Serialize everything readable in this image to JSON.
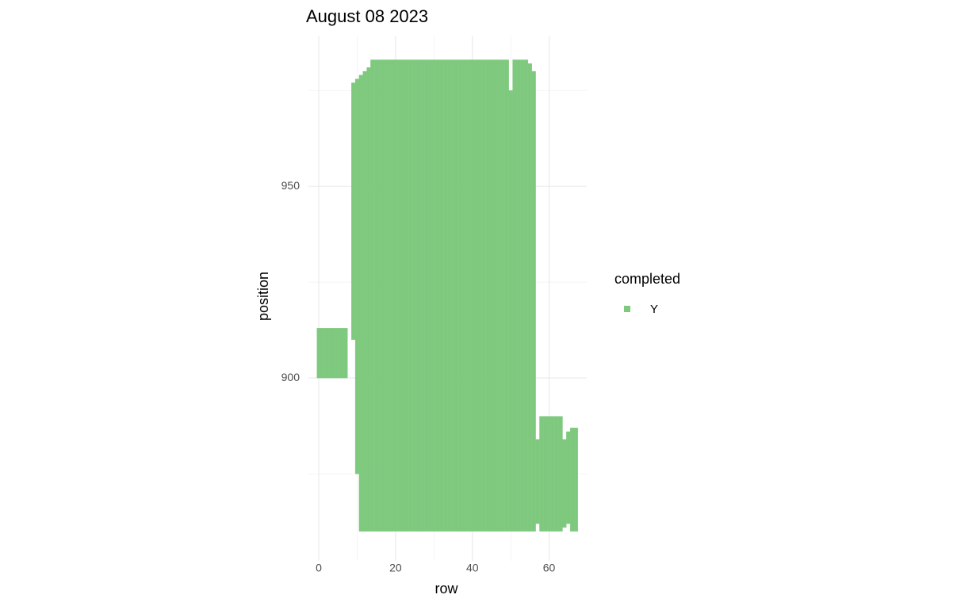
{
  "chart_data": {
    "type": "tile",
    "title": "August 08 2023",
    "x_label": "row",
    "y_label": "position",
    "legend_title": "completed",
    "series": [
      {
        "name": "Y",
        "color": "#7fc97f",
        "x": [
          0,
          1,
          2,
          3,
          4,
          5,
          6,
          7,
          9,
          10,
          11,
          12,
          13,
          14,
          15,
          16,
          17,
          18,
          19,
          20,
          21,
          22,
          23,
          24,
          25,
          26,
          27,
          28,
          29,
          30,
          31,
          32,
          33,
          34,
          35,
          36,
          37,
          38,
          39,
          40,
          41,
          42,
          43,
          44,
          45,
          46,
          47,
          48,
          49,
          50,
          51,
          52,
          53,
          54,
          55,
          56,
          57,
          58,
          59,
          60,
          61,
          62,
          63,
          64,
          65,
          66,
          67
        ],
        "ymin": [
          900,
          900,
          900,
          900,
          900,
          900,
          900,
          900,
          910,
          875,
          860,
          860,
          860,
          860,
          860,
          860,
          860,
          860,
          860,
          860,
          860,
          860,
          860,
          860,
          860,
          860,
          860,
          860,
          860,
          860,
          860,
          860,
          860,
          860,
          860,
          860,
          860,
          860,
          860,
          860,
          860,
          860,
          860,
          860,
          860,
          860,
          860,
          860,
          860,
          860,
          860,
          860,
          860,
          860,
          860,
          860,
          862,
          860,
          860,
          860,
          860,
          860,
          860,
          861,
          862,
          860,
          860
        ],
        "ymax": [
          913,
          913,
          913,
          913,
          913,
          913,
          913,
          913,
          977,
          978,
          979,
          980,
          981,
          983,
          983,
          983,
          983,
          983,
          983,
          983,
          983,
          983,
          983,
          983,
          983,
          983,
          983,
          983,
          983,
          983,
          983,
          983,
          983,
          983,
          983,
          983,
          983,
          983,
          983,
          983,
          983,
          983,
          983,
          983,
          983,
          983,
          983,
          983,
          983,
          975,
          983,
          983,
          983,
          983,
          982,
          980,
          884,
          890,
          890,
          890,
          890,
          890,
          890,
          884,
          886,
          887,
          887
        ]
      }
    ],
    "xlim": [
      -2.7,
      69.8
    ],
    "ylim": [
      852.3,
      989.3
    ],
    "xticks": [
      0,
      20,
      40,
      60
    ],
    "yticks": [
      900,
      950
    ],
    "xminor": [
      10,
      30,
      50
    ],
    "yminor": [
      875,
      925,
      975
    ],
    "grid": true
  }
}
